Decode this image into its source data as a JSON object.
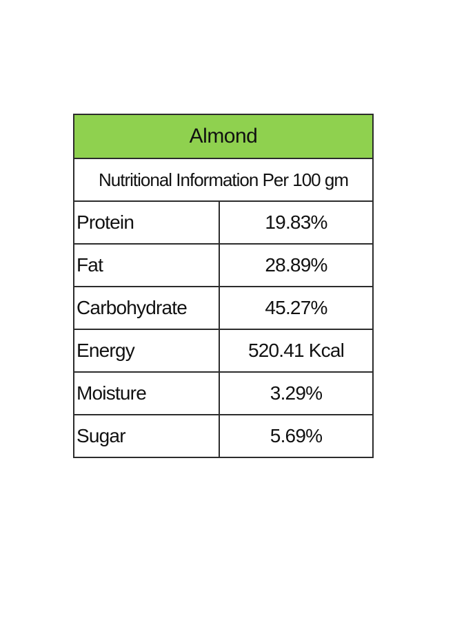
{
  "table": {
    "title": "Almond",
    "subtitle": "Nutritional Information Per 100 gm",
    "rows": [
      {
        "label": "Protein",
        "value": "19.83%"
      },
      {
        "label": "Fat",
        "value": "28.89%"
      },
      {
        "label": "Carbohydrate",
        "value": "45.27%"
      },
      {
        "label": "Energy",
        "value": "520.41 Kcal"
      },
      {
        "label": "Moisture",
        "value": "3.29%"
      },
      {
        "label": "Sugar",
        "value": "5.69%"
      }
    ]
  },
  "colors": {
    "header_green": "#8fd14f",
    "border": "#2b2b2b",
    "text": "#111111"
  }
}
